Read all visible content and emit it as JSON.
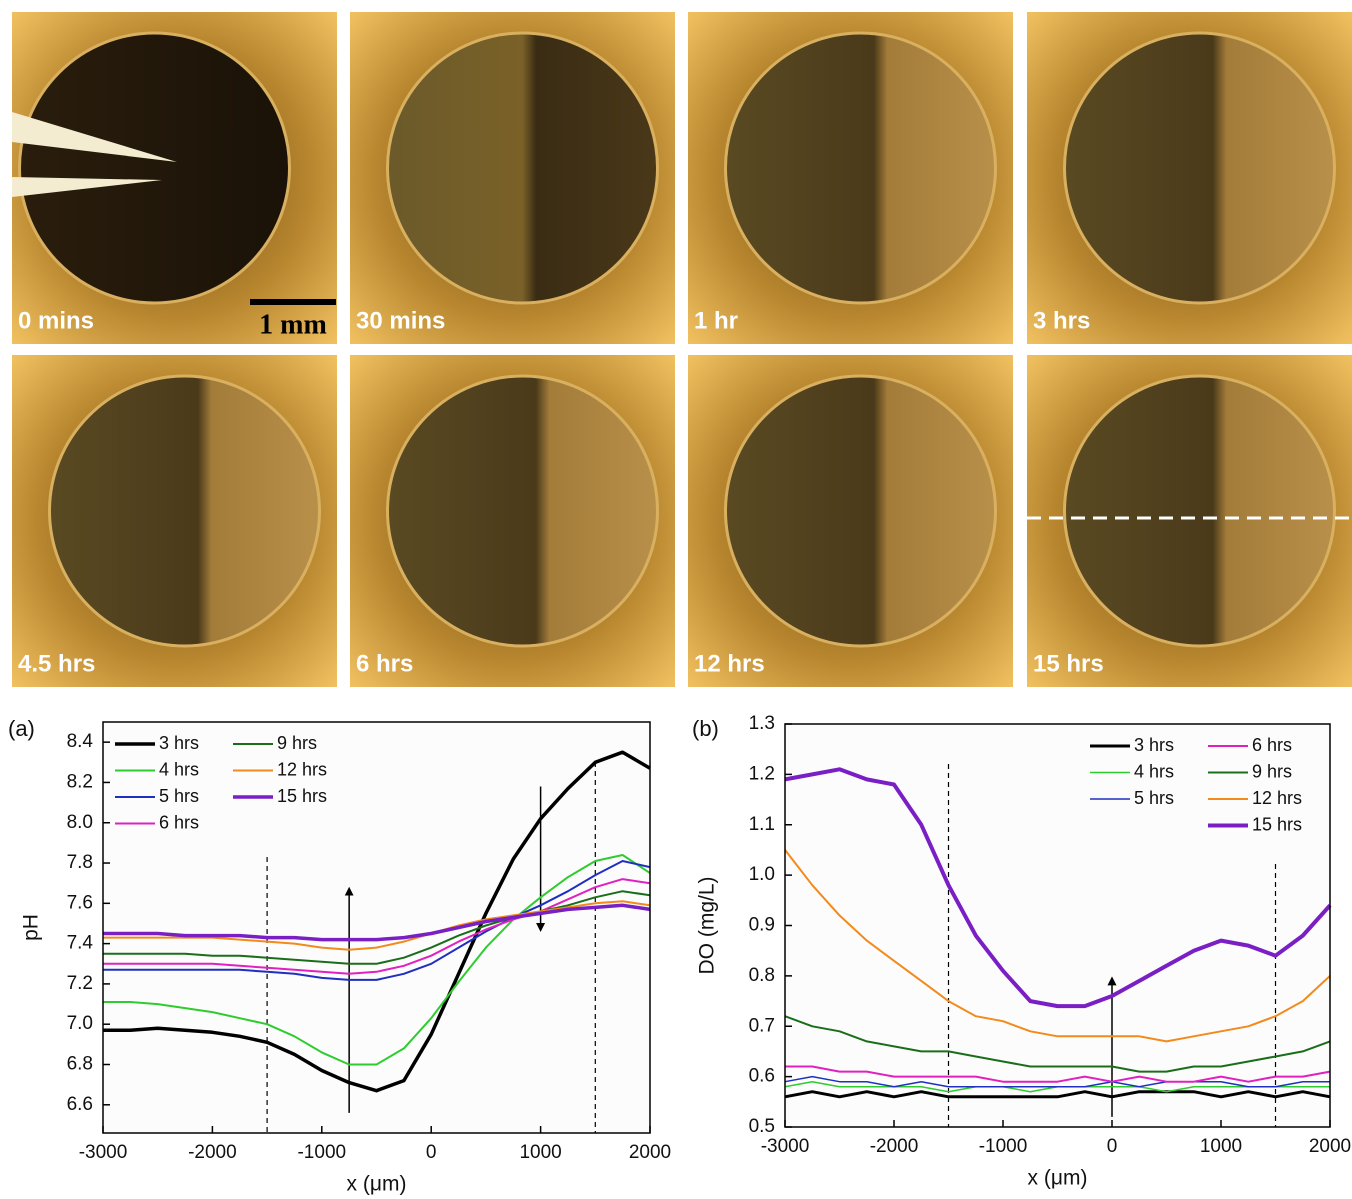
{
  "photos": {
    "labels": [
      "0 mins",
      "30 mins",
      "1 hr",
      "3 hrs",
      "4.5 hrs",
      "6 hrs",
      "12 hrs",
      "15 hrs"
    ],
    "scale_bar": "1 mm"
  },
  "chart_data": [
    {
      "type": "line",
      "panel_label": "(a)",
      "x_label": "x (μm)",
      "y_label": "pH",
      "x": [
        -3000,
        -2750,
        -2500,
        -2250,
        -2000,
        -1750,
        -1500,
        -1250,
        -1000,
        -750,
        -500,
        -250,
        0,
        250,
        500,
        750,
        1000,
        1250,
        1500,
        1750,
        2000
      ],
      "xlim": [
        -3000,
        2000
      ],
      "xticks": [
        -3000,
        -2000,
        -1000,
        0,
        1000,
        2000
      ],
      "ylim": [
        6.46,
        8.5
      ],
      "yticks": [
        6.6,
        6.8,
        {
          "value": 7,
          "label": "7.0"
        },
        7.2,
        7.4,
        7.6,
        7.8,
        {
          "value": 8,
          "label": "8.0"
        },
        8.2,
        8.4
      ],
      "legend": "upper left",
      "grid": false,
      "vlines": [
        -1500,
        1500
      ],
      "arrows": [
        {
          "x": -750,
          "y_start": 6.56,
          "y_end": 7.66
        },
        {
          "x": 1000,
          "y_start": 8.18,
          "y_end": 7.48
        }
      ],
      "series": [
        {
          "name": "3 hrs",
          "color": "#000000",
          "width": 3.5,
          "values": [
            6.97,
            6.97,
            6.98,
            6.97,
            6.96,
            6.94,
            6.91,
            6.85,
            6.77,
            6.71,
            6.67,
            6.72,
            6.95,
            7.25,
            7.55,
            7.82,
            8.02,
            8.17,
            8.3,
            8.35,
            8.27
          ]
        },
        {
          "name": "4 hrs",
          "color": "#2ecc2e",
          "width": 2,
          "values": [
            7.11,
            7.11,
            7.1,
            7.08,
            7.06,
            7.03,
            7.0,
            6.94,
            6.86,
            6.8,
            6.8,
            6.88,
            7.03,
            7.21,
            7.38,
            7.52,
            7.63,
            7.73,
            7.81,
            7.84,
            7.75
          ]
        },
        {
          "name": "5 hrs",
          "color": "#1f2fbf",
          "width": 2,
          "values": [
            7.27,
            7.27,
            7.27,
            7.27,
            7.27,
            7.27,
            7.26,
            7.25,
            7.23,
            7.22,
            7.22,
            7.25,
            7.3,
            7.38,
            7.46,
            7.53,
            7.59,
            7.66,
            7.74,
            7.81,
            7.78
          ]
        },
        {
          "name": "6 hrs",
          "color": "#e020c0",
          "width": 2,
          "values": [
            7.3,
            7.3,
            7.3,
            7.3,
            7.3,
            7.29,
            7.28,
            7.27,
            7.26,
            7.25,
            7.26,
            7.29,
            7.34,
            7.41,
            7.47,
            7.52,
            7.56,
            7.62,
            7.68,
            7.72,
            7.7
          ]
        },
        {
          "name": "9 hrs",
          "color": "#1a6e1a",
          "width": 2,
          "values": [
            7.35,
            7.35,
            7.35,
            7.35,
            7.34,
            7.34,
            7.33,
            7.32,
            7.31,
            7.3,
            7.3,
            7.33,
            7.38,
            7.44,
            7.49,
            7.53,
            7.56,
            7.59,
            7.63,
            7.66,
            7.64
          ]
        },
        {
          "name": "12 hrs",
          "color": "#f28a1c",
          "width": 2,
          "values": [
            7.43,
            7.43,
            7.43,
            7.43,
            7.43,
            7.42,
            7.41,
            7.4,
            7.38,
            7.37,
            7.38,
            7.41,
            7.45,
            7.49,
            7.52,
            7.54,
            7.56,
            7.58,
            7.6,
            7.61,
            7.59
          ]
        },
        {
          "name": "15 hrs",
          "color": "#7a1fc4",
          "width": 3.5,
          "values": [
            7.45,
            7.45,
            7.45,
            7.44,
            7.44,
            7.44,
            7.43,
            7.43,
            7.42,
            7.42,
            7.42,
            7.43,
            7.45,
            7.48,
            7.51,
            7.53,
            7.55,
            7.57,
            7.58,
            7.59,
            7.57
          ]
        }
      ]
    },
    {
      "type": "line",
      "panel_label": "(b)",
      "x_label": "x (μm)",
      "y_label": "DO (mg/L)",
      "x": [
        -3000,
        -2750,
        -2500,
        -2250,
        -2000,
        -1750,
        -1500,
        -1250,
        -1000,
        -750,
        -500,
        -250,
        0,
        250,
        500,
        750,
        1000,
        1250,
        1500,
        1750,
        2000
      ],
      "xlim": [
        -3000,
        2000
      ],
      "xticks": [
        -3000,
        -2000,
        -1000,
        0,
        1000,
        2000
      ],
      "ylim": [
        0.5,
        1.3
      ],
      "yticks": [
        0.5,
        0.6,
        0.7,
        0.8,
        0.9,
        {
          "value": 1,
          "label": "1.0"
        },
        1.1,
        1.2,
        1.3
      ],
      "legend": "upper right",
      "grid": false,
      "vlines": [
        -1500,
        1500
      ],
      "arrows": [
        {
          "x": 0,
          "y_start": 0.52,
          "y_end": 0.79
        }
      ],
      "series": [
        {
          "name": "3 hrs",
          "color": "#000000",
          "width": 3,
          "values": [
            0.56,
            0.57,
            0.56,
            0.57,
            0.56,
            0.57,
            0.56,
            0.56,
            0.56,
            0.56,
            0.56,
            0.57,
            0.56,
            0.57,
            0.57,
            0.57,
            0.56,
            0.57,
            0.56,
            0.57,
            0.56
          ]
        },
        {
          "name": "4 hrs",
          "color": "#2ecc2e",
          "width": 1.5,
          "values": [
            0.58,
            0.59,
            0.58,
            0.58,
            0.58,
            0.58,
            0.57,
            0.58,
            0.58,
            0.57,
            0.58,
            0.58,
            0.58,
            0.58,
            0.57,
            0.58,
            0.58,
            0.58,
            0.58,
            0.58,
            0.58
          ]
        },
        {
          "name": "5 hrs",
          "color": "#1f2fbf",
          "width": 1.5,
          "values": [
            0.59,
            0.6,
            0.59,
            0.59,
            0.58,
            0.59,
            0.58,
            0.58,
            0.58,
            0.58,
            0.58,
            0.58,
            0.59,
            0.58,
            0.59,
            0.59,
            0.59,
            0.58,
            0.58,
            0.59,
            0.59
          ]
        },
        {
          "name": "6 hrs",
          "color": "#e020c0",
          "width": 2,
          "values": [
            0.62,
            0.62,
            0.61,
            0.61,
            0.6,
            0.6,
            0.6,
            0.6,
            0.59,
            0.59,
            0.59,
            0.6,
            0.59,
            0.6,
            0.59,
            0.59,
            0.6,
            0.59,
            0.6,
            0.6,
            0.61
          ]
        },
        {
          "name": "9 hrs",
          "color": "#1a6e1a",
          "width": 2,
          "values": [
            0.72,
            0.7,
            0.69,
            0.67,
            0.66,
            0.65,
            0.65,
            0.64,
            0.63,
            0.62,
            0.62,
            0.62,
            0.62,
            0.61,
            0.61,
            0.62,
            0.62,
            0.63,
            0.64,
            0.65,
            0.67
          ]
        },
        {
          "name": "12 hrs",
          "color": "#f28a1c",
          "width": 2,
          "values": [
            1.05,
            0.98,
            0.92,
            0.87,
            0.83,
            0.79,
            0.75,
            0.72,
            0.71,
            0.69,
            0.68,
            0.68,
            0.68,
            0.68,
            0.67,
            0.68,
            0.69,
            0.7,
            0.72,
            0.75,
            0.8
          ]
        },
        {
          "name": "15 hrs",
          "color": "#7a1fc4",
          "width": 4,
          "values": [
            1.19,
            1.2,
            1.21,
            1.19,
            1.18,
            1.1,
            0.98,
            0.88,
            0.81,
            0.75,
            0.74,
            0.74,
            0.76,
            0.79,
            0.82,
            0.85,
            0.87,
            0.86,
            0.84,
            0.88,
            0.94
          ]
        }
      ]
    }
  ]
}
